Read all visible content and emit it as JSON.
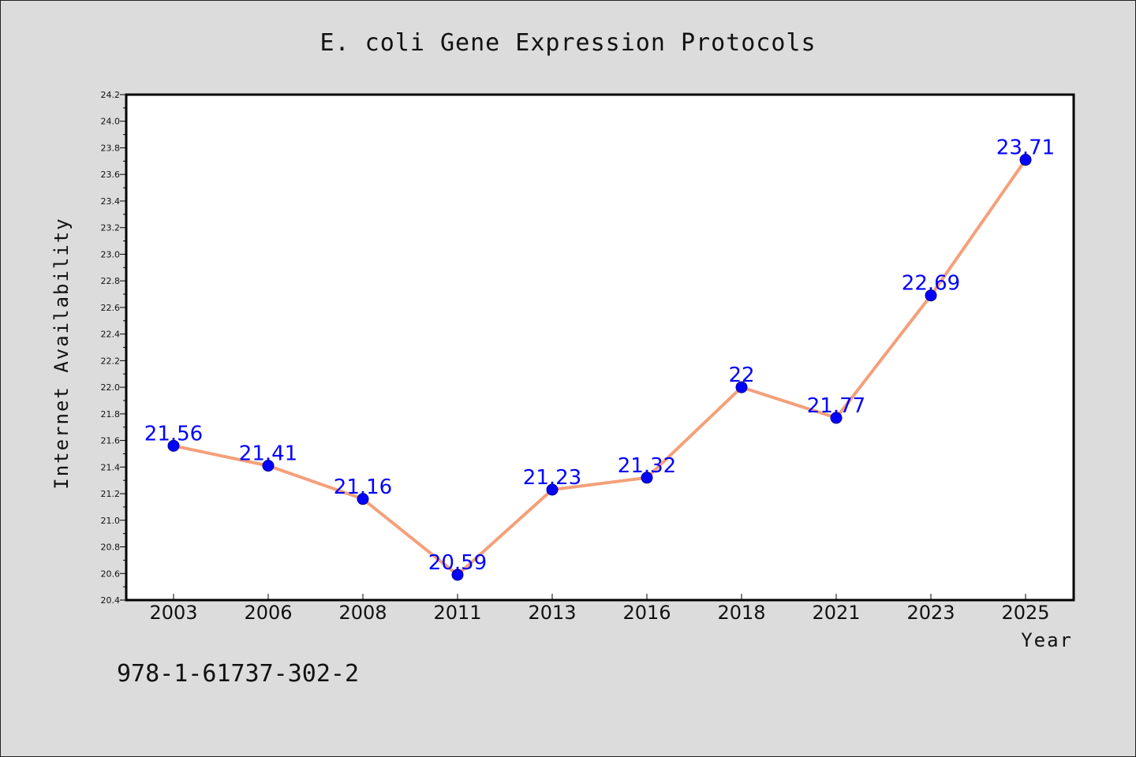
{
  "footer_text": "978-1-61737-302-2",
  "colors": {
    "background": "#dcdcdc",
    "plot_background": "#ffffff",
    "line": "#f4a07a",
    "marker": "#0000ff",
    "label": "#0000ff"
  },
  "chart_data": {
    "type": "line",
    "title": "E. coli Gene Expression Protocols",
    "xlabel": "Year",
    "ylabel": "Internet Availability",
    "categories": [
      "2003",
      "2006",
      "2008",
      "2011",
      "2013",
      "2016",
      "2018",
      "2021",
      "2023",
      "2025"
    ],
    "series": [
      {
        "values": [
          21.56,
          21.41,
          21.16,
          20.59,
          21.23,
          21.32,
          22,
          21.77,
          22.69,
          23.71
        ],
        "labels": [
          "21.56",
          "21.41",
          "21.16",
          "20.59",
          "21.23",
          "21.32",
          "22",
          "21.77",
          "22.69",
          "23.71"
        ]
      }
    ],
    "ylim": [
      20.4,
      24.2
    ],
    "yticks": [
      "20.4",
      "20.6",
      "20.8",
      "21.0",
      "21.2",
      "21.4",
      "21.6",
      "21.8",
      "22.0",
      "22.2",
      "22.4",
      "22.6",
      "22.8",
      "23.0",
      "23.2",
      "23.4",
      "23.6",
      "23.8",
      "24.0",
      "24.2"
    ],
    "grid": false,
    "legend": "none"
  }
}
